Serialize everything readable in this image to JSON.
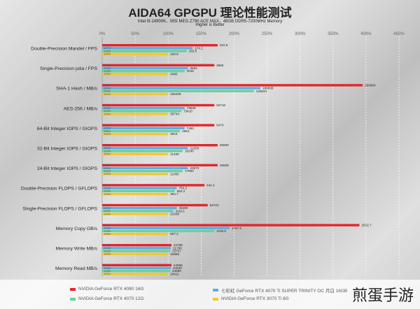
{
  "header": {
    "title": "AIDA64 GPGPU 理论性能测试",
    "subtitle1": "Intel i9-14900K、MSI MEG Z790 ACE MAX、48GB DDR5-7200MHz Memory",
    "subtitle2": "Higher is Better"
  },
  "watermark": "煎蛋手游",
  "chart_data": {
    "type": "bar",
    "orientation": "horizontal",
    "title": "AIDA64 GPGPU 理论性能测试",
    "xlabel": "",
    "ylabel": "",
    "xlim": [
      0,
      450
    ],
    "x_ticks": [
      "0%",
      "50%",
      "100%",
      "150%",
      "200%",
      "250%",
      "300%",
      "350%",
      "400%",
      "450%"
    ],
    "grid": true,
    "legend_position": "bottom",
    "categories": [
      "Double-Precision Mandel / FPS",
      "Single-Precision julia / FPS",
      "SHA-1 Hash / MB/s",
      "AES-256 / MB/s",
      "64-Bit Integer IOPS / GIOPS",
      "32-Bit Integer IOPS / GIOPS",
      "24-Bit Integer IOPS / GIOPS",
      "Double-Precision FLOPS / GFLOPS",
      "Single-Precision FLOPS / GFLOPS",
      "Memory Copy GB/s",
      "Memory Write MB/s",
      "Memory Read MB/s"
    ],
    "series": [
      {
        "name": "NVIDIA GeForce RTX 4080 16G",
        "color": "#e3262b",
        "percents": [
          175,
          170,
          395,
          170,
          170,
          175,
          175,
          155,
          160,
          390,
          105,
          105
        ],
        "labels": [
          "222.8",
          "3865",
          "250984",
          "93718",
          "9470",
          "26930",
          "25839",
          "844.3",
          "53723",
          "2522.7",
          "22798",
          "24956"
        ]
      },
      {
        "name": "七彩虹 GeForce RTX 4070 Ti SUPER TRINITY OC 月白 16GB",
        "color": "#5aaee5",
        "percents": [
          137,
          130,
          240,
          125,
          125,
          130,
          130,
          113,
          113,
          193,
          104,
          104
        ],
        "labels": [
          "174.2",
          "3464",
          "188638",
          "79838",
          "7460",
          "21500",
          "20670",
          "750.3",
          "45290",
          "1767.8",
          "21790",
          "24630"
        ]
      },
      {
        "name": "NVIDIA GeForce RTX 4070 12G",
        "color": "#6fcf9c",
        "percents": [
          128,
          125,
          230,
          120,
          118,
          122,
          122,
          110,
          108,
          170,
          103,
          103
        ],
        "labels": [
          "182.8",
          "3015",
          "126544",
          "73410",
          "4664",
          "18240",
          "17960",
          "650.2",
          "41613",
          "1105.6",
          "22727",
          "24860"
        ]
      },
      {
        "name": "NVIDIA GeForce RTX 3070 Ti 8G",
        "color": "#f2c830",
        "percents": [
          100,
          100,
          100,
          100,
          100,
          100,
          100,
          100,
          100,
          100,
          100,
          100
        ],
        "labels": [
          "100.9",
          "4480",
          "155405",
          "36744",
          "3815",
          "11489",
          "11065",
          "384.7",
          "23280",
          "507.2",
          "22865",
          "24611"
        ]
      }
    ]
  }
}
